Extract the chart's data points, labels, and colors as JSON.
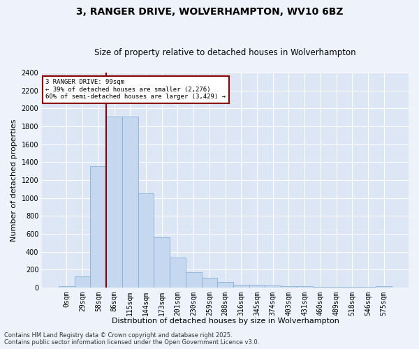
{
  "title": "3, RANGER DRIVE, WOLVERHAMPTON, WV10 6BZ",
  "subtitle": "Size of property relative to detached houses in Wolverhampton",
  "xlabel": "Distribution of detached houses by size in Wolverhampton",
  "ylabel": "Number of detached properties",
  "footnote1": "Contains HM Land Registry data © Crown copyright and database right 2025.",
  "footnote2": "Contains public sector information licensed under the Open Government Licence v3.0.",
  "bar_labels": [
    "0sqm",
    "29sqm",
    "58sqm",
    "86sqm",
    "115sqm",
    "144sqm",
    "173sqm",
    "201sqm",
    "230sqm",
    "259sqm",
    "288sqm",
    "316sqm",
    "345sqm",
    "374sqm",
    "403sqm",
    "431sqm",
    "460sqm",
    "489sqm",
    "518sqm",
    "546sqm",
    "575sqm"
  ],
  "bar_values": [
    15,
    125,
    1360,
    1910,
    1910,
    1055,
    560,
    335,
    170,
    110,
    60,
    35,
    30,
    25,
    20,
    15,
    10,
    5,
    5,
    5,
    15
  ],
  "bar_color": "#c5d8f0",
  "bar_edge_color": "#7aaad0",
  "background_color": "#dce6f5",
  "grid_color": "#ffffff",
  "vline_color": "#8b0000",
  "annotation_text": "3 RANGER DRIVE: 99sqm\n← 39% of detached houses are smaller (2,276)\n60% of semi-detached houses are larger (3,429) →",
  "annotation_box_color": "#8b0000",
  "ylim": [
    0,
    2400
  ],
  "yticks": [
    0,
    200,
    400,
    600,
    800,
    1000,
    1200,
    1400,
    1600,
    1800,
    2000,
    2200,
    2400
  ],
  "title_fontsize": 10,
  "subtitle_fontsize": 8.5,
  "axis_label_fontsize": 8,
  "tick_fontsize": 7,
  "footnote_fontsize": 6,
  "fig_facecolor": "#edf2fb"
}
